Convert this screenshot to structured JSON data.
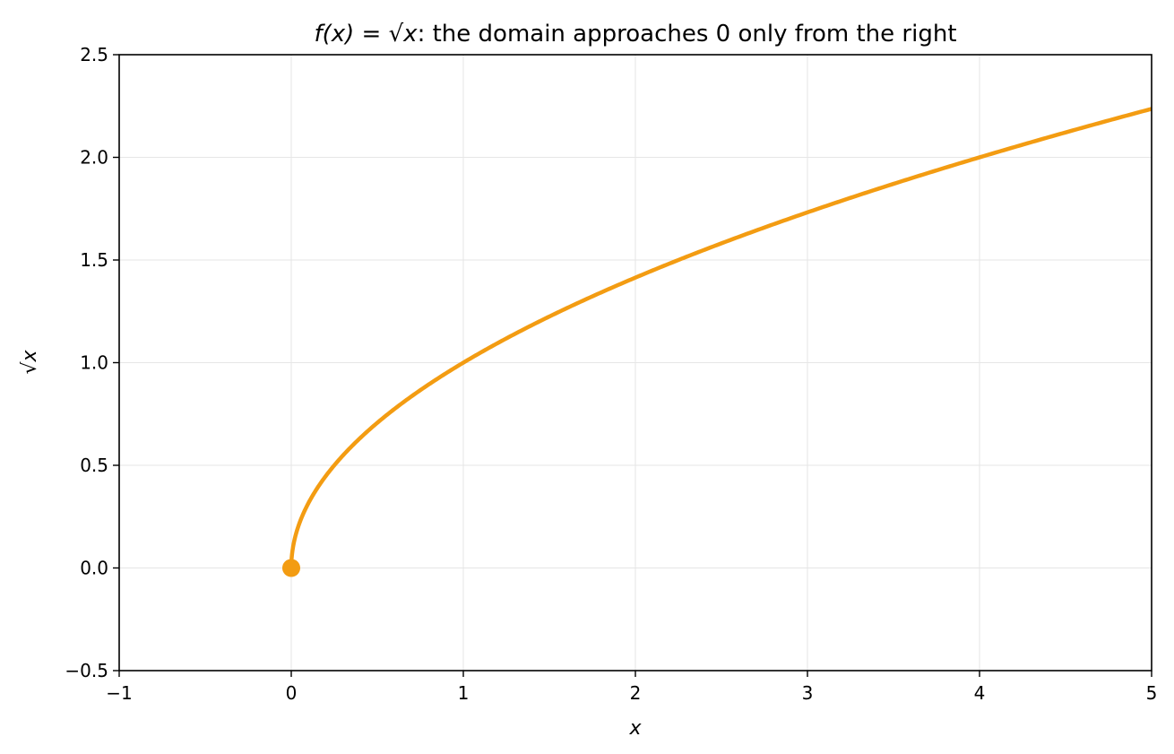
{
  "chart_data": {
    "type": "line",
    "title_prefix": "f(x) = √x",
    "title_suffix": ": the domain approaches 0 only from the right",
    "xlabel": "x",
    "ylabel": "√x",
    "xlim": [
      -1,
      5
    ],
    "ylim": [
      -0.5,
      2.5
    ],
    "x_ticks": [
      -1,
      0,
      1,
      2,
      3,
      4,
      5
    ],
    "x_tick_labels": [
      "−1",
      "0",
      "1",
      "2",
      "3",
      "4",
      "5"
    ],
    "y_ticks": [
      -0.5,
      0.0,
      0.5,
      1.0,
      1.5,
      2.0,
      2.5
    ],
    "y_tick_labels": [
      "−0.5",
      "0.0",
      "0.5",
      "1.0",
      "1.5",
      "2.0",
      "2.5"
    ],
    "grid": true,
    "series": [
      {
        "function": "sqrt",
        "x_start": 0,
        "x_end": 5,
        "color": "#f39c12"
      }
    ],
    "endpoint_marker": {
      "x": 0,
      "y": 0,
      "color": "#f39c12"
    }
  }
}
